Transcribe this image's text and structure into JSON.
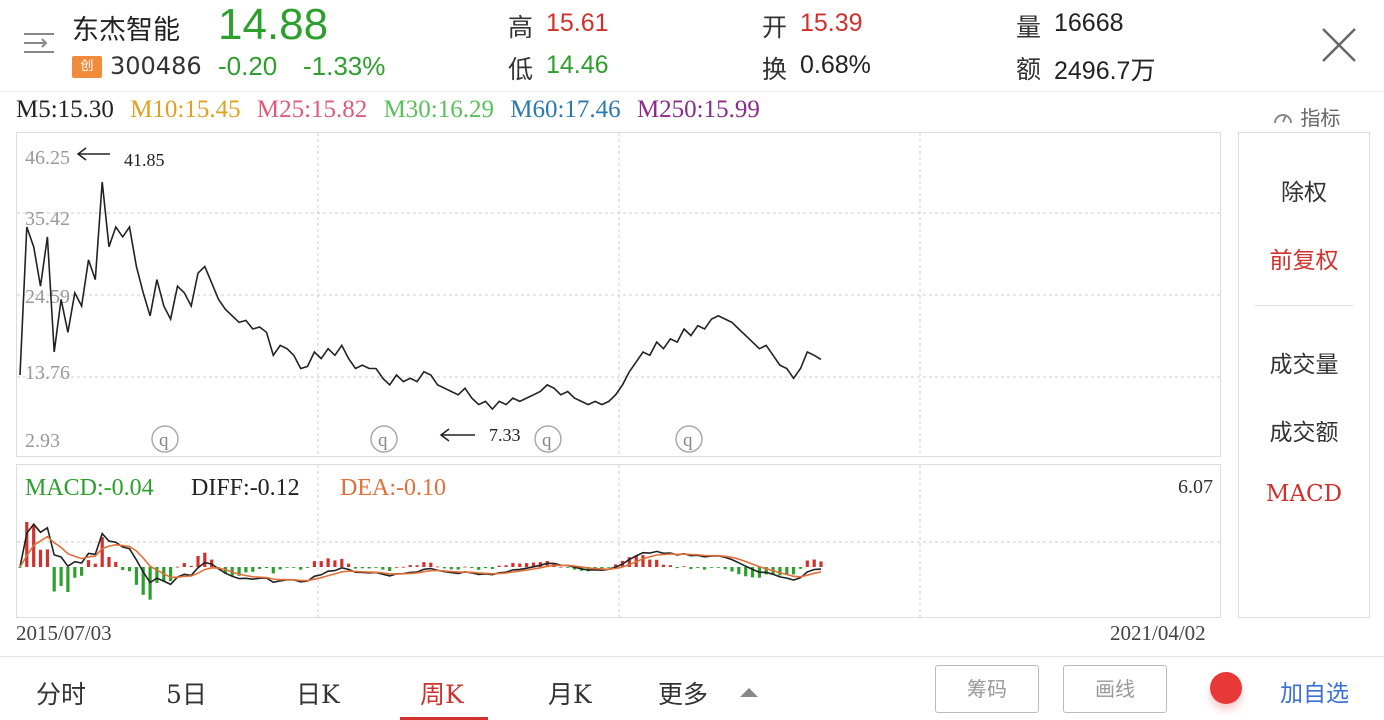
{
  "header": {
    "stock_name": "东杰智能",
    "board_badge": "创",
    "stock_code": "300486",
    "price": "14.88",
    "change": "-0.20",
    "change_pct": "-1.33%",
    "high_label": "高",
    "high_value": "15.61",
    "low_label": "低",
    "low_value": "14.46",
    "open_label": "开",
    "open_value": "15.39",
    "turnover_label": "换",
    "turnover_value": "0.68%",
    "volume_label": "量",
    "volume_value": "16668",
    "amount_label": "额",
    "amount_value": "2496.7万"
  },
  "ma_legend": {
    "m5": "M5:15.30",
    "m10": "M10:15.45",
    "m25": "M25:15.82",
    "m30": "M30:16.29",
    "m60": "M60:17.46",
    "m250": "M250:15.99",
    "colors": {
      "m5": "#222222",
      "m10": "#e0a020",
      "m25": "#e05a7a",
      "m30": "#5ac05a",
      "m60": "#2a7ab0",
      "m250": "#8a2a8a"
    }
  },
  "indicator_label": "指标",
  "main_chart": {
    "y_labels": [
      "46.25",
      "35.42",
      "24.59",
      "13.76",
      "2.93"
    ],
    "max_annotation": "41.85",
    "min_annotation": "7.33",
    "marker_label": "q"
  },
  "macd": {
    "macd_label": "MACD:-0.04",
    "diff_label": "DIFF:-0.12",
    "dea_label": "DEA:-0.10",
    "top_value": "6.07"
  },
  "dates": {
    "start": "2015/07/03",
    "end": "2021/04/02"
  },
  "side_panel": {
    "ex_rights": "除权",
    "forward_adjusted": "前复权",
    "volume": "成交量",
    "amount": "成交额",
    "macd": "MACD"
  },
  "tabs": [
    "分时",
    "5日",
    "日K",
    "周K",
    "月K",
    "更多"
  ],
  "buttons": {
    "chip": "筹码",
    "draw": "画线",
    "add_watchlist": "加自选"
  },
  "chart_data": {
    "type": "line",
    "title": "",
    "ylim": [
      2.93,
      46.25
    ],
    "y_ticks": [
      46.25,
      35.42,
      24.59,
      13.76,
      2.93
    ],
    "x_range": [
      "2015/07/03",
      "2021/04/02"
    ],
    "series": [
      {
        "values": [
          12.5,
          35.0,
          32.0,
          26.0,
          33.5,
          16.0,
          24.0,
          19.0,
          25.0,
          23.0,
          30.0,
          27.0,
          41.85,
          32.0,
          35.0,
          33.5,
          35.0,
          29.0,
          25.0,
          21.5,
          27.0,
          23.0,
          21.0,
          26.0,
          25.0,
          23.0,
          28.0,
          29.0,
          26.5,
          24.0,
          22.5,
          21.5,
          20.5,
          20.8,
          19.5,
          19.8,
          19.0,
          15.5,
          17.0,
          16.5,
          15.5,
          13.5,
          13.8,
          16.0,
          15.0,
          16.5,
          15.5,
          17.0,
          15.0,
          13.5,
          14.0,
          13.5,
          13.5,
          12.0,
          11.0,
          12.5,
          11.5,
          12.0,
          11.5,
          13.0,
          12.5,
          11.0,
          10.5,
          10.0,
          9.5,
          10.5,
          9.0,
          8.0,
          8.5,
          7.33,
          8.5,
          8.0,
          9.0,
          8.5,
          9.0,
          9.5,
          10.0,
          11.0,
          10.5,
          9.5,
          10.0,
          9.0,
          8.5,
          8.0,
          8.5,
          8.0,
          8.5,
          9.5,
          11.0,
          13.0,
          14.5,
          16.0,
          15.5,
          17.5,
          16.5,
          18.0,
          17.5,
          19.5,
          18.5,
          20.0,
          19.5,
          21.0,
          21.5,
          21.0,
          20.5,
          19.5,
          18.5,
          17.5,
          16.5,
          17.0,
          15.5,
          14.0,
          13.5,
          12.0,
          13.5,
          16.0,
          15.5,
          14.88
        ]
      }
    ]
  }
}
